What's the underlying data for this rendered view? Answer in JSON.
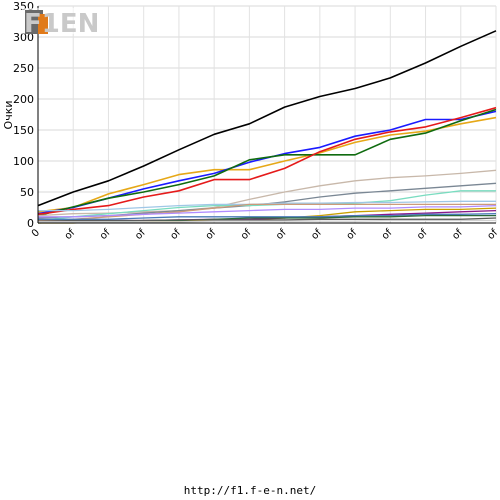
{
  "chart_data": {
    "type": "line",
    "title": "",
    "xlabel": "",
    "ylabel": "Очки",
    "ylim": [
      0,
      350
    ],
    "yticks": [
      0,
      50,
      100,
      150,
      200,
      250,
      300,
      350
    ],
    "categories": [
      "0",
      "of",
      "of",
      "of",
      "of",
      "of",
      "of",
      "of",
      "of",
      "of",
      "of",
      "of",
      "of",
      "of"
    ],
    "grid": true,
    "legend": "none",
    "series": [
      {
        "color": "#000000",
        "values": [
          28,
          50,
          68,
          92,
          118,
          143,
          160,
          187,
          204,
          217,
          234,
          258,
          285,
          310
        ]
      },
      {
        "color": "#e6a817",
        "values": [
          18,
          25,
          47,
          62,
          78,
          86,
          86,
          100,
          113,
          130,
          142,
          148,
          160,
          170
        ]
      },
      {
        "color": "#1a1aff",
        "values": [
          15,
          25,
          40,
          55,
          68,
          80,
          98,
          112,
          122,
          140,
          150,
          167,
          167,
          180
        ]
      },
      {
        "color": "#0f6b0f",
        "values": [
          12,
          26,
          40,
          50,
          62,
          76,
          102,
          110,
          110,
          110,
          135,
          145,
          165,
          183
        ]
      },
      {
        "color": "#e51a1a",
        "values": [
          14,
          22,
          28,
          42,
          52,
          70,
          70,
          88,
          115,
          135,
          147,
          155,
          170,
          186
        ]
      },
      {
        "color": "#c8b8aa",
        "values": [
          12,
          15,
          16,
          18,
          20,
          25,
          38,
          50,
          60,
          68,
          73,
          76,
          80,
          85
        ]
      },
      {
        "color": "#7a8794",
        "values": [
          8,
          10,
          12,
          16,
          20,
          24,
          28,
          34,
          42,
          48,
          52,
          56,
          60,
          64
        ]
      },
      {
        "color": "#7adcc0",
        "values": [
          4,
          10,
          15,
          20,
          25,
          28,
          28,
          30,
          30,
          32,
          36,
          45,
          52,
          52
        ]
      },
      {
        "color": "#9fc7e6",
        "values": [
          20,
          20,
          22,
          25,
          28,
          30,
          30,
          32,
          32,
          33,
          33,
          34,
          35,
          35
        ]
      },
      {
        "color": "#cc9a7a",
        "values": [
          4,
          6,
          10,
          14,
          18,
          24,
          30,
          30,
          30,
          30,
          30,
          30,
          30,
          30
        ]
      },
      {
        "color": "#c8a000",
        "values": [
          0,
          0,
          2,
          2,
          3,
          4,
          5,
          8,
          12,
          18,
          20,
          22,
          22,
          24
        ]
      },
      {
        "color": "#8a1a8a",
        "values": [
          2,
          2,
          4,
          4,
          5,
          6,
          6,
          8,
          10,
          12,
          14,
          16,
          18,
          20
        ]
      },
      {
        "color": "#4a7ab8",
        "values": [
          6,
          6,
          6,
          8,
          10,
          10,
          10,
          10,
          10,
          12,
          12,
          14,
          14,
          15
        ]
      },
      {
        "color": "#2a6a3a",
        "values": [
          0,
          2,
          2,
          4,
          4,
          6,
          8,
          8,
          8,
          10,
          10,
          12,
          12,
          12
        ]
      },
      {
        "color": "#5a5a5a",
        "values": [
          3,
          4,
          4,
          4,
          5,
          5,
          5,
          5,
          6,
          6,
          6,
          6,
          6,
          8
        ]
      },
      {
        "color": "#b08cff",
        "values": [
          10,
          10,
          12,
          14,
          16,
          18,
          20,
          22,
          22,
          24,
          24,
          26,
          26,
          28
        ]
      },
      {
        "color": "#d0d0d0",
        "values": [
          2,
          2,
          2,
          2,
          2,
          3,
          3,
          3,
          3,
          3,
          4,
          4,
          4,
          4
        ]
      }
    ]
  },
  "logo": {
    "text": "F1EN"
  },
  "footer": {
    "url": "http://f1.f-e-n.net/"
  }
}
